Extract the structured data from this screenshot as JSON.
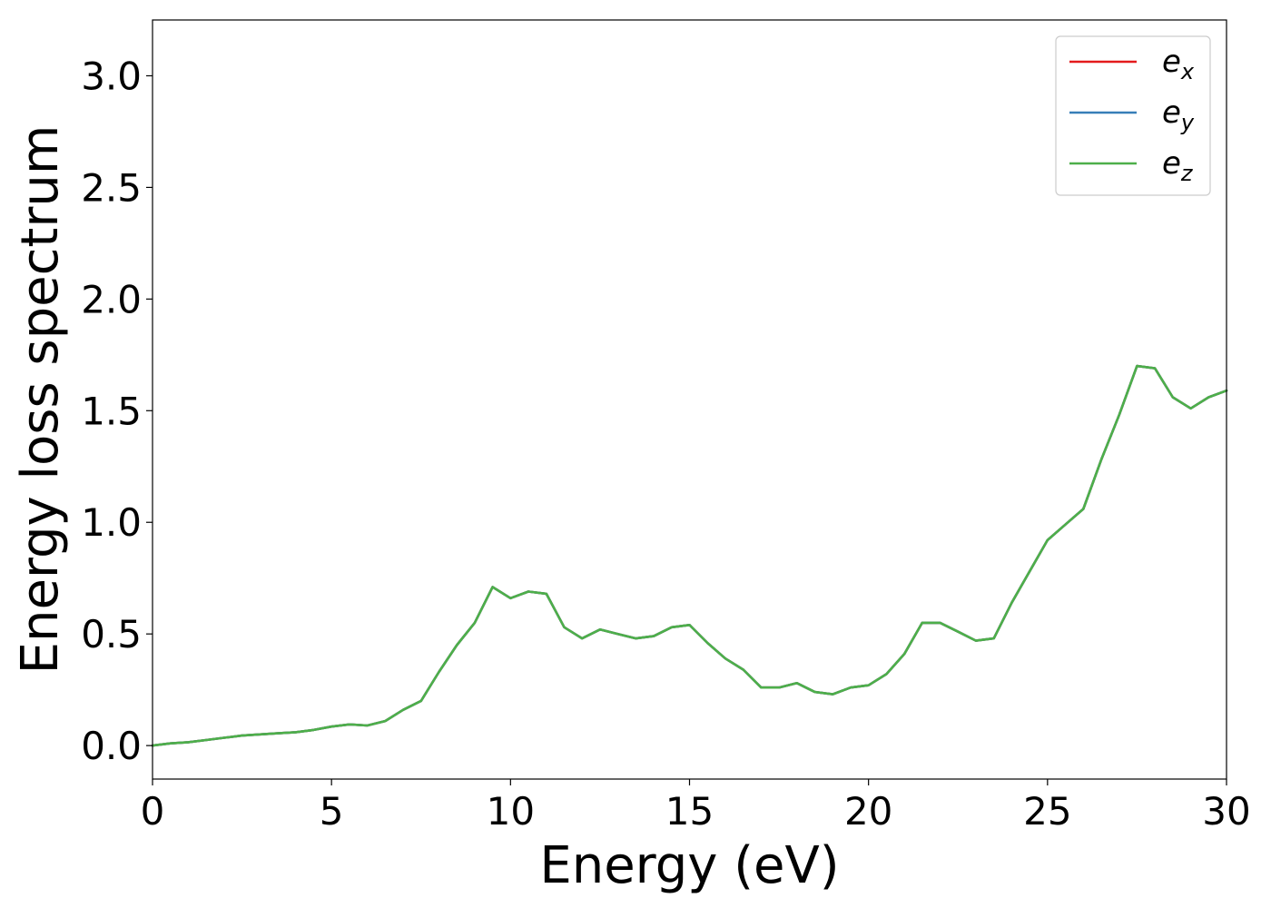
{
  "chart_data": {
    "type": "line",
    "title": "",
    "xlabel": "Energy (eV)",
    "ylabel": "Energy loss spectrum",
    "xlim": [
      0,
      30
    ],
    "ylim": [
      -0.15,
      3.25
    ],
    "xticks": [
      0,
      5,
      10,
      15,
      20,
      25,
      30
    ],
    "xtick_labels": [
      "0",
      "5",
      "10",
      "15",
      "20",
      "25",
      "30"
    ],
    "yticks": [
      0.0,
      0.5,
      1.0,
      1.5,
      2.0,
      2.5,
      3.0
    ],
    "ytick_labels": [
      "0.0",
      "0.5",
      "1.0",
      "1.5",
      "2.0",
      "2.5",
      "3.0"
    ],
    "grid": false,
    "legend_position": "top-right",
    "x": [
      0,
      0.5,
      1,
      1.5,
      2,
      2.5,
      3,
      3.5,
      4,
      4.5,
      5,
      5.5,
      6,
      6.5,
      7,
      7.5,
      8,
      8.5,
      9,
      9.5,
      10,
      10.5,
      11,
      11.5,
      12,
      12.5,
      13,
      13.5,
      14,
      14.5,
      15,
      15.5,
      16,
      16.5,
      17,
      17.5,
      18,
      18.5,
      19,
      19.5,
      20,
      20.5,
      21,
      21.5,
      22,
      22.5,
      23,
      23.5,
      24,
      24.5,
      25,
      25.5,
      26,
      26.5,
      27,
      27.5,
      28,
      28.5,
      29,
      29.5,
      30
    ],
    "series": [
      {
        "name": "e",
        "name_subscript": "x",
        "color": "#e41a1c",
        "values": [
          0.0,
          0.01,
          0.015,
          0.025,
          0.035,
          0.045,
          0.05,
          0.055,
          0.06,
          0.07,
          0.085,
          0.095,
          0.09,
          0.11,
          0.16,
          0.2,
          0.33,
          0.45,
          0.55,
          0.71,
          0.66,
          0.69,
          0.68,
          0.53,
          0.48,
          0.52,
          0.5,
          0.48,
          0.49,
          0.53,
          0.54,
          0.46,
          0.39,
          0.34,
          0.26,
          0.26,
          0.28,
          0.24,
          0.23,
          0.26,
          0.27,
          0.32,
          0.41,
          0.55,
          0.55,
          0.51,
          0.47,
          0.48,
          0.64,
          0.78,
          0.92,
          0.99,
          1.06,
          1.28,
          1.48,
          1.7,
          1.69,
          1.56,
          1.51,
          1.56,
          1.59
        ]
      },
      {
        "name": "e",
        "name_subscript": "y",
        "color": "#377eb8",
        "values": [
          0.0,
          0.01,
          0.015,
          0.025,
          0.035,
          0.045,
          0.05,
          0.055,
          0.06,
          0.07,
          0.085,
          0.095,
          0.09,
          0.11,
          0.16,
          0.2,
          0.33,
          0.45,
          0.55,
          0.71,
          0.66,
          0.69,
          0.68,
          0.53,
          0.48,
          0.52,
          0.5,
          0.48,
          0.49,
          0.53,
          0.54,
          0.46,
          0.39,
          0.34,
          0.26,
          0.26,
          0.28,
          0.24,
          0.23,
          0.26,
          0.27,
          0.32,
          0.41,
          0.55,
          0.55,
          0.51,
          0.47,
          0.48,
          0.64,
          0.78,
          0.92,
          0.99,
          1.06,
          1.28,
          1.48,
          1.7,
          1.69,
          1.56,
          1.51,
          1.56,
          1.59
        ]
      },
      {
        "name": "e",
        "name_subscript": "z",
        "color": "#4daf4a",
        "values": [
          0.0,
          0.01,
          0.015,
          0.025,
          0.035,
          0.045,
          0.05,
          0.055,
          0.06,
          0.07,
          0.085,
          0.095,
          0.09,
          0.11,
          0.16,
          0.2,
          0.33,
          0.45,
          0.55,
          0.71,
          0.66,
          0.69,
          0.68,
          0.53,
          0.48,
          0.52,
          0.5,
          0.48,
          0.49,
          0.53,
          0.54,
          0.46,
          0.39,
          0.34,
          0.26,
          0.26,
          0.28,
          0.24,
          0.23,
          0.26,
          0.27,
          0.32,
          0.41,
          0.55,
          0.55,
          0.51,
          0.47,
          0.48,
          0.64,
          0.78,
          0.92,
          0.99,
          1.06,
          1.28,
          1.48,
          1.7,
          1.69,
          1.56,
          1.51,
          1.56,
          1.59
        ]
      }
    ]
  }
}
